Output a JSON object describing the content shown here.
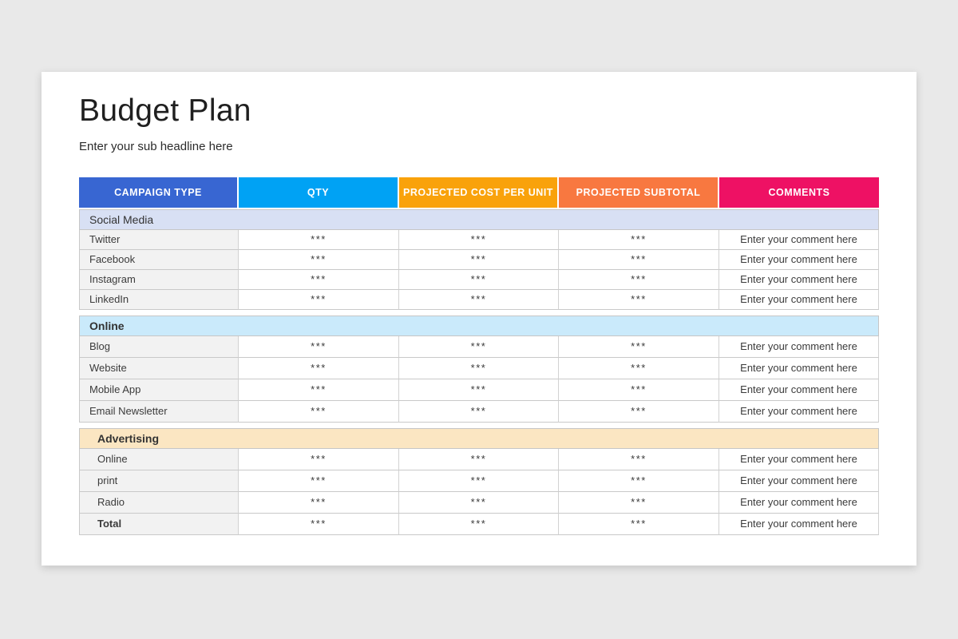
{
  "page": {
    "background_color": "#e9e9e9",
    "card_color": "#ffffff"
  },
  "header": {
    "title": "Budget Plan",
    "subtitle": "Enter your sub headline here"
  },
  "table": {
    "columns": [
      {
        "label": "CAMPAIGN TYPE",
        "color": "#3866d2"
      },
      {
        "label": "QTY",
        "color": "#00a2f4"
      },
      {
        "label": "PROJECTED COST PER UNIT",
        "color": "#f9a20b"
      },
      {
        "label": "PROJECTED SUBTOTAL",
        "color": "#f87840"
      },
      {
        "label": "COMMENTS",
        "color": "#ee1164"
      }
    ],
    "sections": [
      {
        "name": "Social Media",
        "bg": "#d8e0f4",
        "bold": false,
        "indent": false,
        "row_height": "h25",
        "rows": [
          {
            "label": "Twitter",
            "qty": "***",
            "cost_per_unit": "***",
            "subtotal": "***",
            "comment": "Enter your comment here",
            "bold": false
          },
          {
            "label": "Facebook",
            "qty": "***",
            "cost_per_unit": "***",
            "subtotal": "***",
            "comment": "Enter your comment here",
            "bold": false
          },
          {
            "label": "Instagram",
            "qty": "***",
            "cost_per_unit": "***",
            "subtotal": "***",
            "comment": "Enter your comment here",
            "bold": false
          },
          {
            "label": "LinkedIn",
            "qty": "***",
            "cost_per_unit": "***",
            "subtotal": "***",
            "comment": "Enter your comment here",
            "bold": false
          }
        ]
      },
      {
        "name": "Online",
        "bg": "#caeafb",
        "bold": true,
        "indent": false,
        "row_height": "h27",
        "rows": [
          {
            "label": "Blog",
            "qty": "***",
            "cost_per_unit": "***",
            "subtotal": "***",
            "comment": "Enter your comment here",
            "bold": false
          },
          {
            "label": "Website",
            "qty": "***",
            "cost_per_unit": "***",
            "subtotal": "***",
            "comment": "Enter your comment here",
            "bold": false
          },
          {
            "label": "Mobile App",
            "qty": "***",
            "cost_per_unit": "***",
            "subtotal": "***",
            "comment": "Enter your comment here",
            "bold": false
          },
          {
            "label": "Email Newsletter",
            "qty": "***",
            "cost_per_unit": "***",
            "subtotal": "***",
            "comment": "Enter your comment here",
            "bold": false
          }
        ]
      },
      {
        "name": "Advertising",
        "bg": "#fbe6c2",
        "bold": true,
        "indent": true,
        "row_height": "h27",
        "rows": [
          {
            "label": "Online",
            "qty": "***",
            "cost_per_unit": "***",
            "subtotal": "***",
            "comment": "Enter your comment here",
            "bold": false
          },
          {
            "label": "print",
            "qty": "***",
            "cost_per_unit": "***",
            "subtotal": "***",
            "comment": "Enter your comment here",
            "bold": false
          },
          {
            "label": "Radio",
            "qty": "***",
            "cost_per_unit": "***",
            "subtotal": "***",
            "comment": "Enter your comment here",
            "bold": false
          },
          {
            "label": "Total",
            "qty": "***",
            "cost_per_unit": "***",
            "subtotal": "***",
            "comment": "Enter your comment here",
            "bold": true
          }
        ]
      }
    ]
  }
}
